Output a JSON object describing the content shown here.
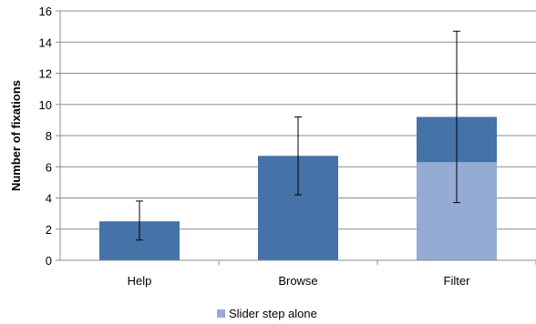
{
  "chart_data": {
    "type": "bar",
    "title": "",
    "xlabel": "",
    "ylabel": "Number of fixations",
    "ylim": [
      0,
      16
    ],
    "yticks": [
      0,
      2,
      4,
      6,
      8,
      10,
      12,
      14,
      16
    ],
    "categories": [
      "Help",
      "Browse",
      "Filter"
    ],
    "series": [
      {
        "name": "",
        "values": [
          2.5,
          6.7,
          9.2
        ],
        "color": "#4572a7"
      },
      {
        "name": "Slider step alone",
        "values": [
          null,
          null,
          6.3
        ],
        "color": "#95abd3"
      }
    ],
    "error_bars": {
      "low": [
        1.3,
        4.2,
        3.7
      ],
      "high": [
        3.8,
        9.2,
        14.7
      ]
    },
    "grid": true,
    "legend_position": "bottom"
  }
}
